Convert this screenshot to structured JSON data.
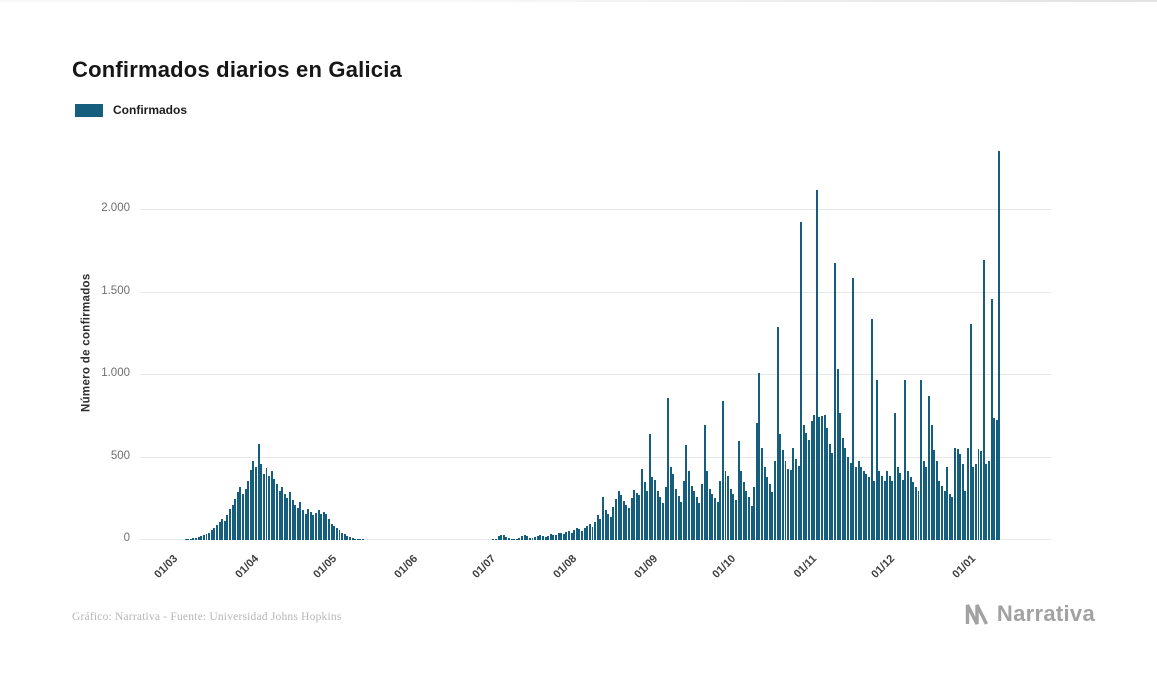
{
  "page": {
    "title": "Confirmados diarios en Galicia",
    "legend": {
      "label": "Confirmados",
      "color": "#155e7d"
    },
    "footer": {
      "credit": "Gráfico: Narrativa - Fuente: Universidad Johns Hopkins",
      "brand": "Narrativa"
    }
  },
  "chart_data": {
    "type": "bar",
    "title": "Confirmados diarios en Galicia",
    "series_name": "Confirmados",
    "xlabel": "",
    "ylabel": "Número de confirmados",
    "bar_color": "#155e7d",
    "grid": true,
    "legend_position": "top-left",
    "ylim": [
      0,
      2400
    ],
    "yticks": [
      0,
      500,
      1000,
      1500,
      2000
    ],
    "ytick_labels": [
      "0",
      "500",
      "1.000",
      "1.500",
      "2.000"
    ],
    "xtick_labels": [
      "01/03",
      "01/04",
      "01/05",
      "01/06",
      "01/07",
      "01/08",
      "01/09",
      "01/10",
      "01/11",
      "01/12",
      "01/01"
    ],
    "xtick_day_index": [
      0,
      31,
      61,
      92,
      122,
      153,
      184,
      214,
      245,
      275,
      306
    ],
    "start_date": "2020-03-01",
    "end_date": "2021-01-13",
    "values": [
      0,
      0,
      1,
      1,
      2,
      3,
      4,
      6,
      8,
      12,
      15,
      18,
      22,
      28,
      35,
      45,
      60,
      75,
      90,
      110,
      130,
      115,
      150,
      185,
      215,
      250,
      290,
      320,
      280,
      310,
      360,
      425,
      480,
      440,
      580,
      460,
      400,
      435,
      390,
      420,
      370,
      340,
      300,
      320,
      280,
      255,
      290,
      240,
      215,
      195,
      230,
      180,
      160,
      190,
      170,
      150,
      165,
      180,
      155,
      170,
      160,
      130,
      100,
      85,
      70,
      60,
      45,
      35,
      25,
      18,
      12,
      8,
      6,
      5,
      4,
      3,
      3,
      2,
      2,
      1,
      1,
      1,
      1,
      0,
      1,
      0,
      1,
      0,
      0,
      1,
      0,
      0,
      0,
      1,
      0,
      0,
      1,
      0,
      0,
      0,
      1,
      0,
      0,
      1,
      0,
      0,
      0,
      1,
      0,
      0,
      1,
      0,
      0,
      0,
      1,
      0,
      0,
      1,
      0,
      0,
      0,
      1,
      2,
      3,
      5,
      8,
      25,
      30,
      28,
      20,
      12,
      8,
      5,
      8,
      12,
      25,
      30,
      22,
      15,
      12,
      18,
      25,
      30,
      26,
      20,
      25,
      35,
      30,
      28,
      40,
      45,
      38,
      50,
      55,
      45,
      60,
      75,
      65,
      55,
      70,
      85,
      95,
      80,
      110,
      150,
      130,
      260,
      180,
      155,
      140,
      200,
      250,
      300,
      270,
      235,
      215,
      195,
      255,
      305,
      285,
      270,
      430,
      350,
      300,
      640,
      380,
      365,
      300,
      260,
      225,
      320,
      860,
      440,
      400,
      310,
      265,
      230,
      360,
      575,
      420,
      330,
      300,
      260,
      225,
      340,
      695,
      420,
      310,
      280,
      255,
      230,
      360,
      840,
      420,
      390,
      310,
      280,
      240,
      600,
      420,
      350,
      300,
      260,
      205,
      320,
      710,
      1010,
      560,
      440,
      380,
      340,
      290,
      480,
      1290,
      640,
      545,
      480,
      430,
      425,
      560,
      490,
      450,
      1930,
      700,
      650,
      605,
      720,
      760,
      2120,
      745,
      750,
      760,
      680,
      580,
      525,
      1680,
      1035,
      770,
      620,
      560,
      505,
      465,
      1590,
      440,
      480,
      445,
      420,
      400,
      380,
      1340,
      360,
      970,
      420,
      385,
      360,
      420,
      385,
      360,
      770,
      445,
      405,
      365,
      970,
      420,
      380,
      350,
      320,
      300,
      970,
      480,
      440,
      870,
      700,
      545,
      480,
      360,
      325,
      300,
      440,
      280,
      260,
      560,
      550,
      520,
      460,
      300,
      560,
      1310,
      445,
      460,
      550,
      540,
      1700,
      460,
      480,
      1460,
      740,
      725,
      2360
    ]
  }
}
